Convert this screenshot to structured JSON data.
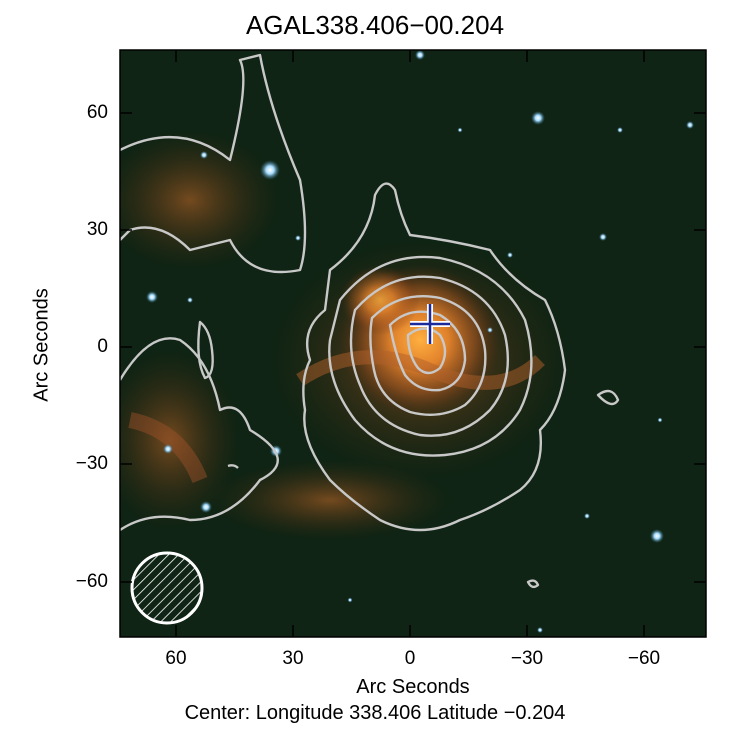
{
  "title": "AGAL338.406−00.204",
  "ylabel": "Arc Seconds",
  "xlabel": "Arc Seconds",
  "center_text": "Center:  Longitude 338.406 Latitude −0.204",
  "yticks": [
    "60",
    "30",
    "0",
    "−30",
    "−60"
  ],
  "xticks": [
    "60",
    "30",
    "0",
    "−30",
    "−60"
  ],
  "colors": {
    "background": "#0f2414",
    "glow": "#e07a2a",
    "contour": "#c8c8c8",
    "marker_outer": "#ffffff",
    "marker_inner": "#1a2a9a",
    "star": "#9fd6ff"
  },
  "icons": {
    "marker": "cross-marker-icon",
    "beam": "hatched-beam-icon"
  }
}
